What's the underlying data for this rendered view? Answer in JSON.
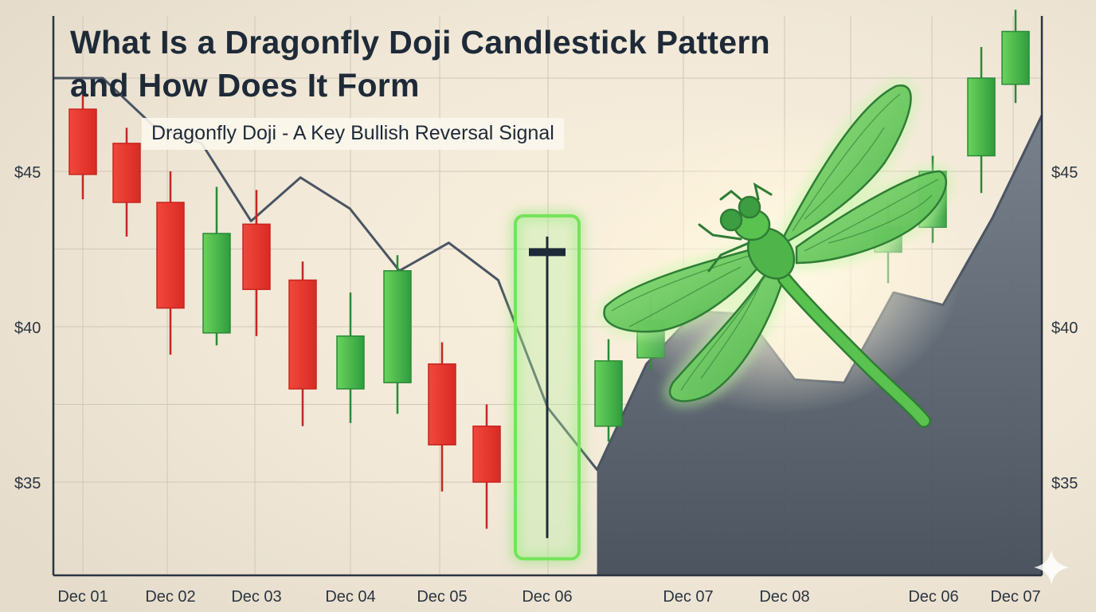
{
  "title_lines": [
    "What Is a Dragonfly Doji Candlestick Pattern",
    "and How Does It Form"
  ],
  "subtitle": "Dragonfly Doji - A Key Bullish Reversal Signal",
  "colors": {
    "background": "#efe6d6",
    "bearish": "#e8332d",
    "bullish": "#35b04a",
    "highlight": "#74e45a",
    "trend_line": "#4a5563",
    "area_fill": "#525d6b",
    "doji": "#1e2a38",
    "dragonfly": "#5ac24f"
  },
  "icons": [
    "dragonfly-icon",
    "sparkle-icon"
  ],
  "chart_data": {
    "type": "candlestick",
    "title": "What Is a Dragonfly Doji Candlestick Pattern and How Does It Form",
    "subtitle": "Dragonfly Doji - A Key Bullish Reversal Signal",
    "y_ticks": [
      "$45",
      "$40",
      "$35"
    ],
    "y_tick_values": [
      45,
      40,
      35
    ],
    "ylim": [
      32,
      50
    ],
    "x_ticks": [
      "Dec 01",
      "Dec 02",
      "Dec 03",
      "Dec 04",
      "Dec 05",
      "Dec 06",
      "Dec 07",
      "Dec 08",
      "Dec 06",
      "Dec 07"
    ],
    "candles": [
      {
        "open": 47.0,
        "close": 44.9,
        "high": 47.5,
        "low": 44.1,
        "dir": "down"
      },
      {
        "open": 45.9,
        "close": 44.0,
        "high": 46.4,
        "low": 42.9,
        "dir": "down"
      },
      {
        "open": 44.0,
        "close": 40.6,
        "high": 45.0,
        "low": 39.1,
        "dir": "down"
      },
      {
        "open": 39.8,
        "close": 43.0,
        "high": 44.5,
        "low": 39.4,
        "dir": "up"
      },
      {
        "open": 43.3,
        "close": 41.2,
        "high": 44.4,
        "low": 39.7,
        "dir": "down"
      },
      {
        "open": 41.5,
        "close": 38.0,
        "high": 42.1,
        "low": 36.8,
        "dir": "down"
      },
      {
        "open": 38.0,
        "close": 39.7,
        "high": 41.1,
        "low": 36.9,
        "dir": "up"
      },
      {
        "open": 38.2,
        "close": 41.8,
        "high": 42.3,
        "low": 37.2,
        "dir": "up"
      },
      {
        "open": 38.8,
        "close": 36.2,
        "high": 39.5,
        "low": 34.7,
        "dir": "down"
      },
      {
        "open": 36.8,
        "close": 35.0,
        "high": 37.5,
        "low": 33.5,
        "dir": "down"
      },
      {
        "open": 42.4,
        "close": 42.4,
        "high": 42.9,
        "low": 33.2,
        "dir": "doji"
      },
      {
        "open": 36.8,
        "close": 38.9,
        "high": 39.6,
        "low": 36.3,
        "dir": "up"
      },
      {
        "open": 39.0,
        "close": 40.2,
        "high": 40.9,
        "low": 38.6,
        "dir": "up"
      },
      {
        "open": 42.4,
        "close": 43.2,
        "high": 44.0,
        "low": 41.4,
        "dir": "up"
      },
      {
        "open": 43.2,
        "close": 45.0,
        "high": 45.5,
        "low": 42.7,
        "dir": "up"
      },
      {
        "open": 45.5,
        "close": 48.0,
        "high": 49.0,
        "low": 44.3,
        "dir": "up"
      },
      {
        "open": 47.8,
        "close": 49.5,
        "high": 50.2,
        "low": 47.2,
        "dir": "up"
      }
    ],
    "trend_line": [
      48.0,
      48.0,
      46.5,
      45.9,
      43.4,
      44.8,
      43.8,
      41.8,
      42.7,
      41.5,
      37.4,
      35.4,
      38.8,
      40.5,
      40.4,
      38.3,
      38.2,
      41.1,
      40.7,
      43.5,
      46.8
    ],
    "highlight": "dragonfly doji",
    "grid": true
  }
}
